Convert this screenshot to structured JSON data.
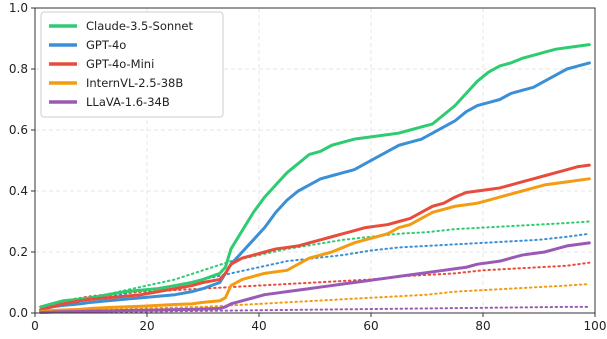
{
  "chart_data": {
    "type": "line",
    "title": "",
    "xlabel": "",
    "ylabel": "",
    "xlim": [
      0,
      100
    ],
    "ylim": [
      0,
      1.0
    ],
    "grid": true,
    "legend_position": "top-left",
    "x_ticks": [
      0,
      20,
      40,
      60,
      80,
      100
    ],
    "x_tick_labels": [
      "0",
      "20",
      "40",
      "60",
      "80",
      "100"
    ],
    "y_ticks": [
      0,
      0.2,
      0.4,
      0.6,
      0.8,
      1.0
    ],
    "y_tick_labels": [
      "0.0",
      "0.2",
      "0.4",
      "0.6",
      "0.8",
      "1.0"
    ],
    "series": [
      {
        "name": "Claude-3.5-Sonnet",
        "color": "#2ecc71",
        "solid": {
          "x": [
            1,
            3,
            5,
            8,
            10,
            13,
            16,
            19,
            22,
            25,
            28,
            30,
            33,
            34,
            35,
            37,
            39,
            41,
            43,
            45,
            47,
            49,
            51,
            53,
            55,
            57,
            59,
            61,
            63,
            65,
            67,
            69,
            71,
            73,
            75,
            77,
            79,
            81,
            83,
            85,
            87,
            89,
            91,
            93,
            95,
            97,
            99
          ],
          "y": [
            0.02,
            0.03,
            0.04,
            0.045,
            0.05,
            0.06,
            0.07,
            0.075,
            0.08,
            0.09,
            0.1,
            0.11,
            0.13,
            0.15,
            0.21,
            0.27,
            0.33,
            0.38,
            0.42,
            0.46,
            0.49,
            0.52,
            0.53,
            0.55,
            0.56,
            0.57,
            0.575,
            0.58,
            0.585,
            0.59,
            0.6,
            0.61,
            0.62,
            0.65,
            0.68,
            0.72,
            0.76,
            0.79,
            0.81,
            0.82,
            0.835,
            0.845,
            0.855,
            0.865,
            0.87,
            0.875,
            0.88
          ]
        },
        "dotted": {
          "x": [
            1,
            5,
            10,
            15,
            20,
            25,
            30,
            35,
            40,
            45,
            50,
            55,
            60,
            65,
            70,
            75,
            80,
            85,
            90,
            95,
            99
          ],
          "y": [
            0.02,
            0.035,
            0.05,
            0.07,
            0.09,
            0.11,
            0.14,
            0.17,
            0.19,
            0.21,
            0.225,
            0.24,
            0.25,
            0.26,
            0.265,
            0.275,
            0.28,
            0.285,
            0.29,
            0.295,
            0.3
          ]
        }
      },
      {
        "name": "GPT-4o",
        "color": "#3a8fd6",
        "solid": {
          "x": [
            1,
            3,
            5,
            8,
            10,
            13,
            16,
            19,
            22,
            25,
            28,
            30,
            33,
            34,
            35,
            37,
            39,
            41,
            43,
            45,
            47,
            49,
            51,
            53,
            55,
            57,
            59,
            61,
            63,
            65,
            67,
            69,
            71,
            73,
            75,
            77,
            79,
            81,
            83,
            85,
            87,
            89,
            91,
            93,
            95,
            97,
            99
          ],
          "y": [
            0.01,
            0.02,
            0.025,
            0.03,
            0.035,
            0.04,
            0.045,
            0.05,
            0.055,
            0.06,
            0.07,
            0.08,
            0.1,
            0.13,
            0.16,
            0.2,
            0.24,
            0.28,
            0.33,
            0.37,
            0.4,
            0.42,
            0.44,
            0.45,
            0.46,
            0.47,
            0.49,
            0.51,
            0.53,
            0.55,
            0.56,
            0.57,
            0.59,
            0.61,
            0.63,
            0.66,
            0.68,
            0.69,
            0.7,
            0.72,
            0.73,
            0.74,
            0.76,
            0.78,
            0.8,
            0.81,
            0.82
          ]
        },
        "dotted": {
          "x": [
            1,
            5,
            10,
            15,
            20,
            25,
            30,
            35,
            40,
            45,
            50,
            55,
            60,
            65,
            70,
            75,
            80,
            85,
            90,
            95,
            99
          ],
          "y": [
            0.02,
            0.03,
            0.045,
            0.06,
            0.075,
            0.09,
            0.11,
            0.13,
            0.15,
            0.17,
            0.18,
            0.19,
            0.205,
            0.215,
            0.22,
            0.225,
            0.23,
            0.235,
            0.24,
            0.25,
            0.26
          ]
        }
      },
      {
        "name": "GPT-4o-Mini",
        "color": "#e74c3c",
        "solid": {
          "x": [
            1,
            3,
            5,
            8,
            10,
            13,
            16,
            19,
            22,
            25,
            28,
            30,
            33,
            34,
            35,
            37,
            39,
            41,
            43,
            45,
            47,
            49,
            51,
            53,
            55,
            57,
            59,
            61,
            63,
            65,
            67,
            69,
            71,
            73,
            75,
            77,
            79,
            81,
            83,
            85,
            87,
            89,
            91,
            93,
            95,
            97,
            99
          ],
          "y": [
            0.01,
            0.02,
            0.03,
            0.04,
            0.045,
            0.05,
            0.055,
            0.06,
            0.07,
            0.08,
            0.09,
            0.1,
            0.11,
            0.13,
            0.16,
            0.18,
            0.19,
            0.2,
            0.21,
            0.215,
            0.22,
            0.23,
            0.24,
            0.25,
            0.26,
            0.27,
            0.28,
            0.285,
            0.29,
            0.3,
            0.31,
            0.33,
            0.35,
            0.36,
            0.38,
            0.395,
            0.4,
            0.405,
            0.41,
            0.42,
            0.43,
            0.44,
            0.45,
            0.46,
            0.47,
            0.48,
            0.485
          ]
        },
        "dotted": {
          "x": [
            1,
            5,
            10,
            15,
            20,
            25,
            30,
            35,
            40,
            45,
            50,
            55,
            60,
            65,
            70,
            75,
            80,
            85,
            90,
            95,
            99
          ],
          "y": [
            0.02,
            0.04,
            0.055,
            0.065,
            0.07,
            0.075,
            0.08,
            0.085,
            0.09,
            0.095,
            0.1,
            0.105,
            0.11,
            0.12,
            0.125,
            0.13,
            0.14,
            0.145,
            0.15,
            0.155,
            0.165
          ]
        }
      },
      {
        "name": "InternVL-2.5-38B",
        "color": "#f39c12",
        "solid": {
          "x": [
            1,
            3,
            5,
            8,
            10,
            13,
            16,
            19,
            22,
            25,
            28,
            30,
            33,
            34,
            35,
            37,
            39,
            41,
            43,
            45,
            47,
            49,
            51,
            53,
            55,
            57,
            59,
            61,
            63,
            65,
            67,
            69,
            71,
            73,
            75,
            77,
            79,
            81,
            83,
            85,
            87,
            89,
            91,
            93,
            95,
            97,
            99
          ],
          "y": [
            0.005,
            0.008,
            0.01,
            0.012,
            0.015,
            0.018,
            0.02,
            0.022,
            0.025,
            0.028,
            0.03,
            0.035,
            0.04,
            0.05,
            0.09,
            0.11,
            0.12,
            0.13,
            0.135,
            0.14,
            0.16,
            0.18,
            0.19,
            0.2,
            0.215,
            0.23,
            0.24,
            0.25,
            0.26,
            0.28,
            0.29,
            0.31,
            0.33,
            0.34,
            0.35,
            0.355,
            0.36,
            0.37,
            0.38,
            0.39,
            0.4,
            0.41,
            0.42,
            0.425,
            0.43,
            0.435,
            0.44
          ]
        },
        "dotted": {
          "x": [
            1,
            5,
            10,
            15,
            20,
            25,
            30,
            35,
            40,
            45,
            50,
            55,
            60,
            65,
            70,
            75,
            80,
            85,
            90,
            95,
            99
          ],
          "y": [
            0.005,
            0.008,
            0.01,
            0.012,
            0.015,
            0.018,
            0.02,
            0.025,
            0.03,
            0.035,
            0.04,
            0.045,
            0.05,
            0.055,
            0.06,
            0.07,
            0.075,
            0.08,
            0.085,
            0.09,
            0.095
          ]
        }
      },
      {
        "name": "LLaVA-1.6-34B",
        "color": "#9b59b6",
        "solid": {
          "x": [
            1,
            3,
            5,
            8,
            10,
            13,
            16,
            19,
            22,
            25,
            28,
            30,
            33,
            34,
            35,
            37,
            39,
            41,
            43,
            45,
            47,
            49,
            51,
            53,
            55,
            57,
            59,
            61,
            63,
            65,
            67,
            69,
            71,
            73,
            75,
            77,
            79,
            81,
            83,
            85,
            87,
            89,
            91,
            93,
            95,
            97,
            99
          ],
          "y": [
            0.002,
            0.003,
            0.004,
            0.005,
            0.006,
            0.007,
            0.008,
            0.009,
            0.01,
            0.011,
            0.012,
            0.013,
            0.015,
            0.02,
            0.03,
            0.04,
            0.05,
            0.06,
            0.065,
            0.07,
            0.075,
            0.08,
            0.085,
            0.09,
            0.095,
            0.1,
            0.105,
            0.11,
            0.115,
            0.12,
            0.125,
            0.13,
            0.135,
            0.14,
            0.145,
            0.15,
            0.16,
            0.165,
            0.17,
            0.18,
            0.19,
            0.195,
            0.2,
            0.21,
            0.22,
            0.225,
            0.23
          ]
        },
        "dotted": {
          "x": [
            1,
            5,
            10,
            15,
            20,
            25,
            30,
            35,
            40,
            45,
            50,
            55,
            60,
            65,
            70,
            75,
            80,
            85,
            90,
            95,
            99
          ],
          "y": [
            0.001,
            0.002,
            0.003,
            0.004,
            0.005,
            0.006,
            0.007,
            0.008,
            0.009,
            0.01,
            0.011,
            0.012,
            0.013,
            0.014,
            0.015,
            0.016,
            0.017,
            0.018,
            0.019,
            0.02,
            0.02
          ]
        }
      }
    ]
  }
}
